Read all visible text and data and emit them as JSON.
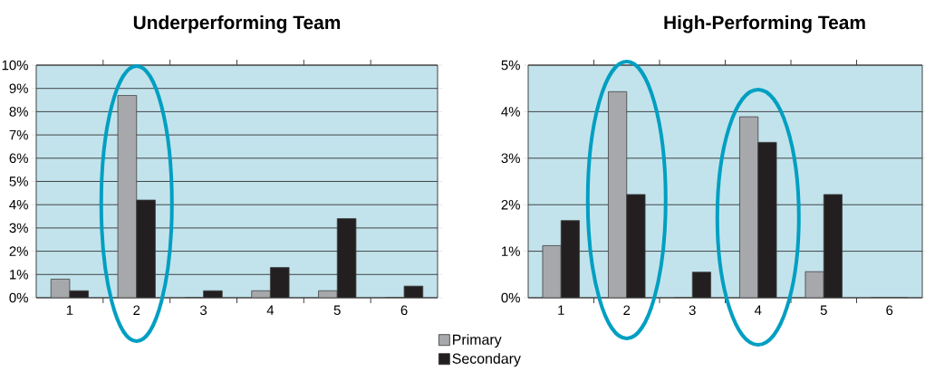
{
  "chart_data": [
    {
      "type": "bar",
      "title": "Underperforming Team",
      "categories": [
        "1",
        "2",
        "3",
        "4",
        "5",
        "6"
      ],
      "series": [
        {
          "color": "#a7a8ab",
          "values": [
            0.8,
            8.7,
            0,
            0.3,
            0.3,
            0
          ]
        },
        {
          "color": "#231f20",
          "values": [
            0.3,
            4.2,
            0.3,
            1.3,
            3.4,
            0.5
          ]
        }
      ],
      "ylim": [
        0,
        10
      ],
      "yticks": [
        {
          "value": 0,
          "label": "0%"
        },
        {
          "value": 1,
          "label": "1%"
        },
        {
          "value": 2,
          "label": "2%"
        },
        {
          "value": 3,
          "label": "3%"
        },
        {
          "value": 4,
          "label": "4%"
        },
        {
          "value": 5,
          "label": "5%"
        },
        {
          "value": 6,
          "label": "6%"
        },
        {
          "value": 7,
          "label": "7%"
        },
        {
          "value": 8,
          "label": "8%"
        },
        {
          "value": 9,
          "label": "9%"
        },
        {
          "value": 10,
          "label": "10%"
        }
      ],
      "grid": "y",
      "legend": false
    },
    {
      "type": "bar",
      "title": "High-Performing Team",
      "categories": [
        "1",
        "2",
        "3",
        "4",
        "5",
        "6"
      ],
      "series": [
        {
          "name": "Primary",
          "color": "#a7a8ab",
          "values": [
            1.12,
            4.43,
            0,
            3.89,
            0.56,
            0
          ]
        },
        {
          "name": "Secondary",
          "color": "#231f20",
          "values": [
            1.66,
            2.22,
            0.55,
            3.34,
            2.22,
            0
          ]
        }
      ],
      "ylim": [
        0,
        5
      ],
      "yticks": [
        {
          "value": 0,
          "label": "0%"
        },
        {
          "value": 1,
          "label": "1%"
        },
        {
          "value": 2,
          "label": "2%"
        },
        {
          "value": 3,
          "label": "3%"
        },
        {
          "value": 4,
          "label": "4%"
        },
        {
          "value": 5,
          "label": "5%"
        }
      ],
      "grid": "y",
      "legend": "bottom"
    }
  ]
}
